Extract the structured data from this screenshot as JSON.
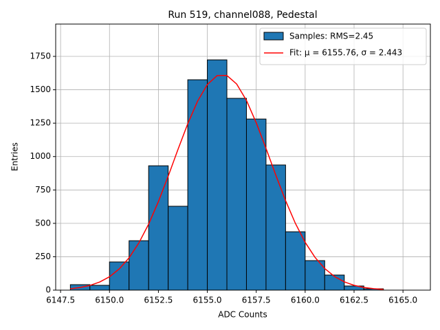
{
  "chart_data": {
    "type": "histogram",
    "title": "Run 519, channel088, Pedestal",
    "xlabel": "ADC Counts",
    "ylabel": "Entries",
    "xlim": [
      6147.25,
      6166.4
    ],
    "ylim": [
      0,
      1992
    ],
    "xticks": [
      6147.5,
      {
        "value": 6150,
        "label": "6150.0"
      },
      6152.5,
      {
        "value": 6155,
        "label": "6155.0"
      },
      6157.5,
      {
        "value": 6160,
        "label": "6160.0"
      },
      6162.5,
      {
        "value": 6165,
        "label": "6165.0"
      }
    ],
    "yticks": [
      0,
      250,
      500,
      750,
      1000,
      1250,
      1500,
      1750
    ],
    "grid": true,
    "legend": "upper right",
    "series": [
      {
        "type": "histogram",
        "name": "Samples: RMS=2.45",
        "color": "#1f77b4",
        "edgecolor": "#000000",
        "bins": [
          6148,
          6149,
          6150,
          6151,
          6152,
          6153,
          6154,
          6155,
          6156,
          6157,
          6158,
          6159,
          6160,
          6161,
          6162,
          6163,
          6164
        ],
        "counts": [
          41,
          36,
          211,
          370,
          931,
          628,
          1575,
          1724,
          1436,
          1281,
          937,
          437,
          221,
          113,
          31,
          10
        ]
      },
      {
        "type": "line",
        "name": "Fit: μ = 6155.76, σ = 2.443",
        "color": "#ff0000",
        "x": [
          6148,
          6148.5,
          6149,
          6149.5,
          6150,
          6150.5,
          6151,
          6151.5,
          6152,
          6152.5,
          6153,
          6153.5,
          6154,
          6154.5,
          6155,
          6155.5,
          6156,
          6156.5,
          6157,
          6157.5,
          6158,
          6158.5,
          6159,
          6159.5,
          6160,
          6160.5,
          6161,
          6161.5,
          6162,
          6162.5,
          6163,
          6163.5,
          6164
        ],
        "values": [
          10,
          20,
          35,
          61,
          100,
          159,
          242,
          353,
          494,
          663,
          853,
          1053,
          1246,
          1414,
          1539,
          1606,
          1607,
          1543,
          1420,
          1253,
          1061,
          861,
          670,
          500,
          358,
          246,
          162,
          102,
          62,
          36,
          20,
          11,
          5
        ]
      }
    ]
  }
}
